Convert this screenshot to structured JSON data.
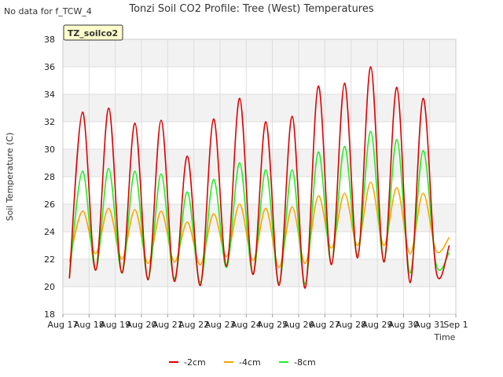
{
  "notice": "No data for f_TCW_4",
  "chart_data": {
    "type": "line",
    "title": "Tonzi Soil CO2 Profile: Tree (West) Temperatures",
    "xlabel": "Time",
    "ylabel": "Soil Temperature (C)",
    "ylim": [
      18,
      38
    ],
    "yticks": [
      18,
      20,
      22,
      24,
      26,
      28,
      30,
      32,
      34,
      36,
      38
    ],
    "xlim": [
      "2023-08-17",
      "2023-09-01"
    ],
    "xtick_labels": [
      "Aug 17",
      "Aug 18",
      "Aug 19",
      "Aug 20",
      "Aug 21",
      "Aug 22",
      "Aug 23",
      "Aug 24",
      "Aug 25",
      "Aug 26",
      "Aug 27",
      "Aug 28",
      "Aug 29",
      "Aug 30",
      "Aug 31",
      "Sep 1"
    ],
    "grid": true,
    "shaded_bands": true,
    "box_label": "TZ_soilco2",
    "legend": {
      "placement": "bottom-center"
    },
    "x": [
      "Aug 17 06:00",
      "Aug 17 18:00",
      "Aug 18 06:00",
      "Aug 18 18:00",
      "Aug 19 06:00",
      "Aug 19 18:00",
      "Aug 20 06:00",
      "Aug 20 18:00",
      "Aug 21 06:00",
      "Aug 21 18:00",
      "Aug 22 06:00",
      "Aug 22 18:00",
      "Aug 23 06:00",
      "Aug 23 18:00",
      "Aug 24 06:00",
      "Aug 24 18:00",
      "Aug 25 06:00",
      "Aug 25 18:00",
      "Aug 26 06:00",
      "Aug 26 18:00",
      "Aug 27 06:00",
      "Aug 27 18:00",
      "Aug 28 06:00",
      "Aug 28 18:00",
      "Aug 29 06:00",
      "Aug 29 18:00",
      "Aug 30 06:00",
      "Aug 30 18:00",
      "Aug 31 06:00",
      "Aug 31 18:00"
    ],
    "series": [
      {
        "name": "-2cm",
        "color": "#dd0000",
        "values": [
          20.6,
          32.7,
          21.2,
          33.0,
          21.0,
          31.9,
          20.5,
          32.1,
          20.4,
          29.5,
          20.1,
          32.2,
          21.5,
          33.7,
          20.9,
          32.0,
          20.1,
          32.4,
          19.9,
          34.6,
          21.6,
          34.8,
          22.1,
          36.0,
          21.8,
          34.5,
          20.3,
          33.7,
          21.1,
          23.0
        ]
      },
      {
        "name": "-4cm",
        "color": "#ffa500",
        "values": [
          21.8,
          25.5,
          22.4,
          25.7,
          22.0,
          25.6,
          21.7,
          25.5,
          21.8,
          24.7,
          21.6,
          25.3,
          22.2,
          26.0,
          21.9,
          25.7,
          21.4,
          25.8,
          21.7,
          26.6,
          22.8,
          26.8,
          23.0,
          27.6,
          23.0,
          27.2,
          22.4,
          26.8,
          22.6,
          23.6
        ]
      },
      {
        "name": "-8cm",
        "color": "#22ee22",
        "values": [
          20.7,
          28.4,
          21.2,
          28.6,
          21.0,
          28.4,
          20.6,
          28.2,
          20.6,
          26.9,
          20.3,
          27.8,
          21.4,
          29.0,
          20.9,
          28.5,
          20.3,
          28.5,
          20.2,
          29.8,
          21.7,
          30.2,
          22.3,
          31.3,
          21.9,
          30.7,
          21.0,
          29.9,
          21.6,
          22.5
        ]
      }
    ]
  }
}
